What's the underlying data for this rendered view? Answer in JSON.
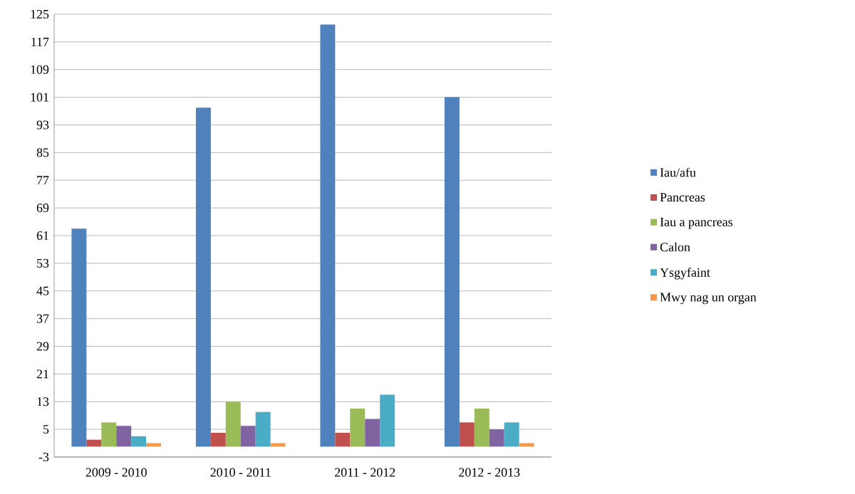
{
  "chart_data": {
    "type": "bar",
    "categories": [
      "2009 - 2010",
      "2010 - 2011",
      "2011 - 2012",
      "2012 - 2013"
    ],
    "series": [
      {
        "name": "Iau/afu",
        "color": "#4f81bd",
        "values": [
          63,
          98,
          122,
          101
        ]
      },
      {
        "name": "Pancreas",
        "color": "#c0504d",
        "values": [
          2,
          4,
          4,
          7
        ]
      },
      {
        "name": "Iau a pancreas",
        "color": "#9bbb59",
        "values": [
          7,
          13,
          11,
          11
        ]
      },
      {
        "name": "Calon",
        "color": "#8064a2",
        "values": [
          6,
          6,
          8,
          5
        ]
      },
      {
        "name": "Ysgyfaint",
        "color": "#4bacc6",
        "values": [
          3,
          10,
          15,
          7
        ]
      },
      {
        "name": "Mwy nag un organ",
        "color": "#f79646",
        "values": [
          1,
          1,
          0,
          1
        ]
      }
    ],
    "ylim": [
      -3,
      125
    ],
    "yticks": [
      -3,
      5,
      13,
      21,
      29,
      37,
      45,
      53,
      61,
      69,
      77,
      85,
      93,
      101,
      109,
      117,
      125
    ],
    "grid": "y",
    "legend": "right"
  }
}
